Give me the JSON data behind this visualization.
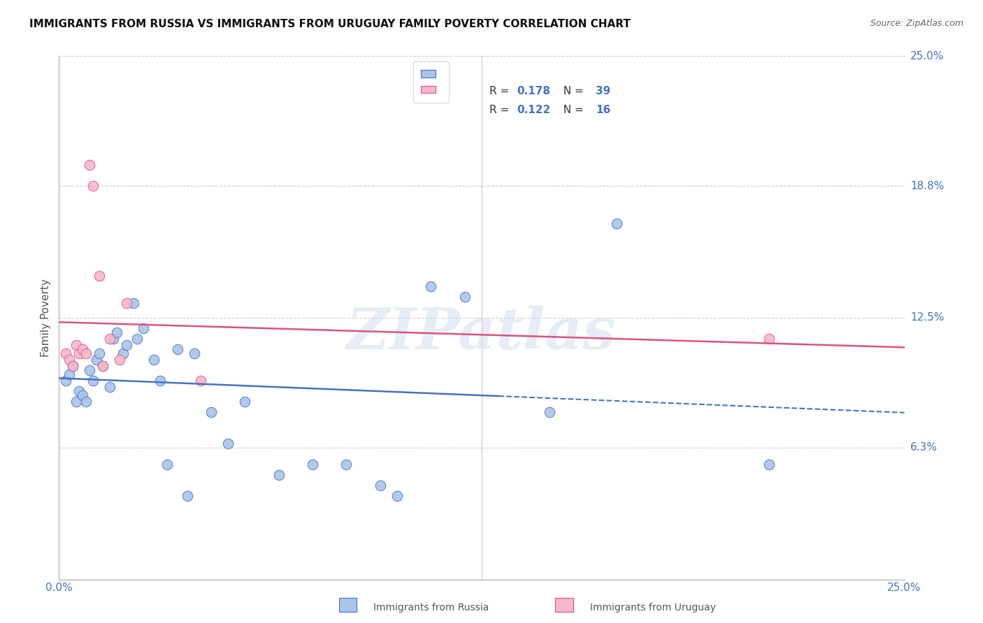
{
  "title": "IMMIGRANTS FROM RUSSIA VS IMMIGRANTS FROM URUGUAY FAMILY POVERTY CORRELATION CHART",
  "source": "Source: ZipAtlas.com",
  "ylabel": "Family Poverty",
  "ytick_labels": [
    "6.3%",
    "12.5%",
    "18.8%",
    "25.0%"
  ],
  "ytick_values": [
    6.3,
    12.5,
    18.8,
    25.0
  ],
  "xlim": [
    0.0,
    25.0
  ],
  "ylim": [
    0.0,
    25.0
  ],
  "russia_color": "#aac4ea",
  "uruguay_color": "#f5b8cb",
  "russia_line_color": "#4472c4",
  "uruguay_line_color": "#e05080",
  "russia_x": [
    0.2,
    0.3,
    0.4,
    0.5,
    0.6,
    0.7,
    0.8,
    0.9,
    1.0,
    1.1,
    1.2,
    1.3,
    1.5,
    1.6,
    1.7,
    1.9,
    2.0,
    2.2,
    2.5,
    2.8,
    3.0,
    3.2,
    3.5,
    3.8,
    4.0,
    4.5,
    5.5,
    6.5,
    7.5,
    8.5,
    9.5,
    11.0,
    12.0,
    14.5,
    16.5,
    21.0,
    5.0,
    10.0,
    2.3
  ],
  "russia_y": [
    9.5,
    9.8,
    10.2,
    8.5,
    9.0,
    8.8,
    8.5,
    10.0,
    9.5,
    10.5,
    10.8,
    10.2,
    9.2,
    11.5,
    11.8,
    10.8,
    11.2,
    13.2,
    12.0,
    10.5,
    9.5,
    5.5,
    11.0,
    4.0,
    10.8,
    8.0,
    8.5,
    5.0,
    5.5,
    5.5,
    4.5,
    14.0,
    13.5,
    8.0,
    17.0,
    5.5,
    6.5,
    4.0,
    11.5
  ],
  "uruguay_x": [
    0.2,
    0.3,
    0.4,
    0.5,
    0.6,
    0.7,
    0.9,
    1.0,
    1.2,
    1.5,
    1.8,
    2.0,
    4.2,
    21.0,
    0.8,
    1.3
  ],
  "uruguay_y": [
    10.8,
    10.5,
    10.2,
    11.2,
    10.8,
    11.0,
    19.8,
    18.8,
    14.5,
    11.5,
    10.5,
    13.2,
    9.5,
    11.5,
    10.8,
    10.2
  ],
  "watermark": "ZIPatlas",
  "background_color": "#ffffff",
  "grid_color": "#cccccc",
  "russia_r": 0.178,
  "russia_n": 39,
  "uruguay_r": 0.122,
  "uruguay_n": 16
}
